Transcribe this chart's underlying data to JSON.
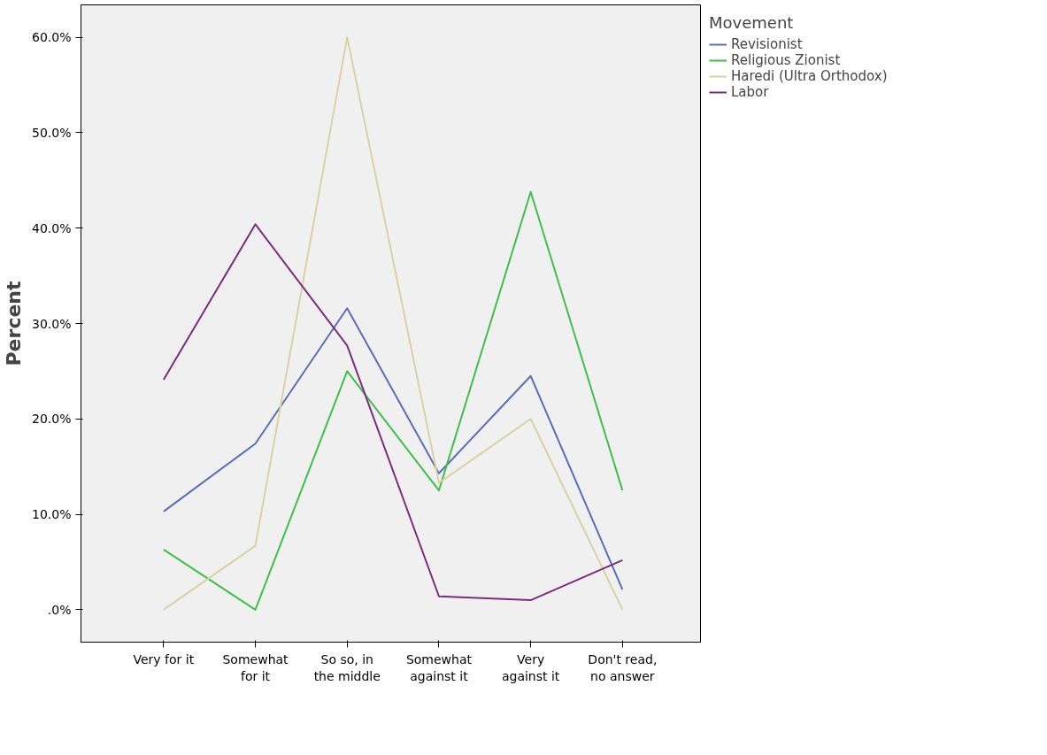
{
  "chart_data": {
    "type": "line",
    "ylabel": "Percent",
    "legend_title": "Movement",
    "legend": "top right",
    "grid": false,
    "categories": [
      "Very for it",
      "Somewhat\nfor it",
      "So so, in\nthe middle",
      "Somewhat\nagainst it",
      "Very\nagainst it",
      "Don't read,\nno answer"
    ],
    "ylim": [
      -3.4,
      63.4
    ],
    "yticks": [
      {
        "value": 0,
        "label": ".0%"
      },
      {
        "value": 10,
        "label": "10.0%"
      },
      {
        "value": 20,
        "label": "20.0%"
      },
      {
        "value": 30,
        "label": "30.0%"
      },
      {
        "value": 40,
        "label": "40.0%"
      },
      {
        "value": 50,
        "label": "50.0%"
      },
      {
        "value": 60,
        "label": "60.0%"
      }
    ],
    "series": [
      {
        "name": "Revisionist",
        "color": "#5b6db8",
        "values": [
          10.3,
          17.4,
          31.6,
          14.3,
          24.5,
          2.1
        ]
      },
      {
        "name": "Religious Zionist",
        "color": "#3fbf4a",
        "values": [
          6.3,
          0,
          25.0,
          12.5,
          43.8,
          12.5
        ]
      },
      {
        "name": "Haredi (Ultra Orthodox)",
        "color": "#d9d0a3",
        "values": [
          0,
          6.7,
          60.0,
          13.3,
          20.0,
          0
        ]
      },
      {
        "name": "Labor",
        "color": "#7b2c7b",
        "values": [
          24.1,
          40.4,
          27.7,
          1.4,
          1.0,
          5.2
        ]
      }
    ]
  }
}
